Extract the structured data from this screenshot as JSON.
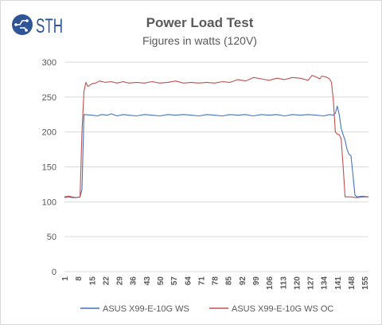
{
  "logo": {
    "text": "STH",
    "icon": "circuit-sth-logo-icon"
  },
  "colors": {
    "series1": "#4472C4",
    "series2": "#C0504D",
    "grid": "#D9D9D9",
    "axis_text": "#595959",
    "title": "#595959",
    "logo_blue": "#2F5597"
  },
  "chart_data": {
    "type": "line",
    "title": "Power Load Test",
    "subtitle": "Figures in watts (120V)",
    "xlabel": "",
    "ylabel": "",
    "x_range": [
      1,
      157
    ],
    "x_ticks": [
      1,
      8,
      15,
      22,
      29,
      36,
      43,
      50,
      57,
      64,
      71,
      78,
      85,
      92,
      99,
      106,
      113,
      120,
      127,
      134,
      141,
      148,
      155
    ],
    "ylim": [
      0,
      300
    ],
    "y_ticks": [
      0,
      50,
      100,
      150,
      200,
      250,
      300
    ],
    "grid": "horizontal",
    "legend_position": "bottom",
    "series": [
      {
        "name": "ASUS X99-E-10G WS",
        "points": [
          [
            1,
            106
          ],
          [
            3,
            107
          ],
          [
            5,
            106
          ],
          [
            7,
            106
          ],
          [
            9,
            107
          ],
          [
            10,
            118
          ],
          [
            11,
            225
          ],
          [
            15,
            224
          ],
          [
            18,
            223
          ],
          [
            20,
            225
          ],
          [
            23,
            224
          ],
          [
            25,
            226
          ],
          [
            28,
            223
          ],
          [
            31,
            225
          ],
          [
            34,
            224
          ],
          [
            38,
            223
          ],
          [
            42,
            225
          ],
          [
            46,
            224
          ],
          [
            50,
            223
          ],
          [
            54,
            225
          ],
          [
            58,
            224
          ],
          [
            62,
            225
          ],
          [
            66,
            224
          ],
          [
            70,
            223
          ],
          [
            74,
            225
          ],
          [
            78,
            224
          ],
          [
            82,
            223
          ],
          [
            86,
            225
          ],
          [
            90,
            224
          ],
          [
            94,
            225
          ],
          [
            98,
            223
          ],
          [
            102,
            225
          ],
          [
            106,
            224
          ],
          [
            110,
            225
          ],
          [
            114,
            223
          ],
          [
            118,
            225
          ],
          [
            122,
            224
          ],
          [
            126,
            225
          ],
          [
            130,
            224
          ],
          [
            134,
            223
          ],
          [
            137,
            225
          ],
          [
            139,
            224
          ],
          [
            140,
            227
          ],
          [
            141,
            237
          ],
          [
            142,
            225
          ],
          [
            143,
            205
          ],
          [
            144,
            196
          ],
          [
            145,
            188
          ],
          [
            146,
            175
          ],
          [
            147,
            168
          ],
          [
            148,
            166
          ],
          [
            149,
            140
          ],
          [
            150,
            110
          ],
          [
            151,
            107
          ],
          [
            154,
            108
          ],
          [
            157,
            107
          ]
        ]
      },
      {
        "name": "ASUS X99-E-10G WS OC",
        "points": [
          [
            1,
            107
          ],
          [
            3,
            108
          ],
          [
            5,
            107
          ],
          [
            7,
            106
          ],
          [
            9,
            107
          ],
          [
            10,
            200
          ],
          [
            11,
            258
          ],
          [
            12,
            271
          ],
          [
            13,
            265
          ],
          [
            15,
            269
          ],
          [
            17,
            270
          ],
          [
            19,
            273
          ],
          [
            22,
            271
          ],
          [
            25,
            272
          ],
          [
            28,
            270
          ],
          [
            31,
            272
          ],
          [
            34,
            270
          ],
          [
            38,
            271
          ],
          [
            42,
            270
          ],
          [
            46,
            272
          ],
          [
            50,
            270
          ],
          [
            54,
            271
          ],
          [
            58,
            273
          ],
          [
            62,
            270
          ],
          [
            66,
            271
          ],
          [
            70,
            270
          ],
          [
            74,
            271
          ],
          [
            78,
            270
          ],
          [
            82,
            272
          ],
          [
            86,
            271
          ],
          [
            90,
            275
          ],
          [
            94,
            273
          ],
          [
            98,
            278
          ],
          [
            102,
            276
          ],
          [
            106,
            274
          ],
          [
            110,
            277
          ],
          [
            114,
            275
          ],
          [
            118,
            278
          ],
          [
            122,
            277
          ],
          [
            126,
            274
          ],
          [
            128,
            281
          ],
          [
            130,
            279
          ],
          [
            132,
            276
          ],
          [
            133,
            280
          ],
          [
            135,
            279
          ],
          [
            137,
            276
          ],
          [
            138,
            271
          ],
          [
            139,
            245
          ],
          [
            140,
            200
          ],
          [
            141,
            197
          ],
          [
            142,
            196
          ],
          [
            143,
            190
          ],
          [
            144,
            150
          ],
          [
            145,
            107
          ],
          [
            148,
            107
          ],
          [
            151,
            106
          ],
          [
            154,
            107
          ],
          [
            157,
            107
          ]
        ]
      }
    ]
  }
}
